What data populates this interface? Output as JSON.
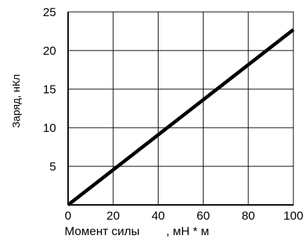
{
  "chart_data": {
    "type": "line",
    "xlabel": "Момент силы        , мН * м",
    "ylabel": "Заряд, нКл",
    "xlim": [
      0,
      100
    ],
    "ylim": [
      0,
      25
    ],
    "x_ticks": [
      "0",
      "20",
      "40",
      "60",
      "80",
      "100"
    ],
    "y_ticks": [
      "5",
      "10",
      "15",
      "20",
      "25"
    ],
    "grid": true,
    "legend": "none",
    "series": [
      {
        "x": [
          0,
          100
        ],
        "y": [
          0,
          22.7
        ],
        "color": "#000000"
      }
    ]
  }
}
